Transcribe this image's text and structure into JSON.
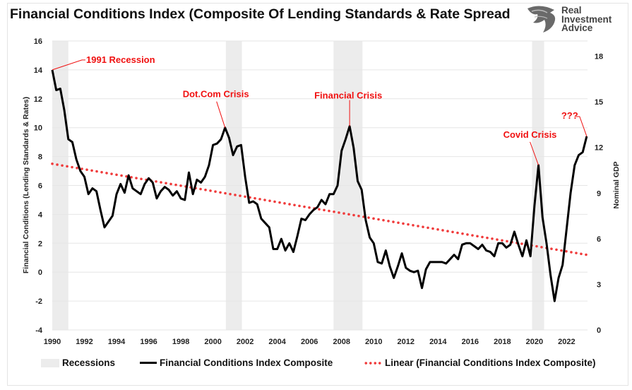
{
  "title": "Financial Conditions Index (Composite Of Lending Standards & Rate Spread",
  "logo": {
    "line1": "Real",
    "line2": "Investment",
    "line3": "Advice"
  },
  "chart_data": {
    "type": "line",
    "title": "Financial Conditions Index (Composite Of Lending Standards & Rate Spread",
    "ylabel": "Financial Conditions (Lending Standards & Rates)",
    "y2label": "Nominal GDP",
    "xlim": [
      1990,
      2023.3
    ],
    "ylim": [
      -4,
      16
    ],
    "y2lim": [
      0,
      19
    ],
    "xticks": [
      "1990",
      "1992",
      "1994",
      "1996",
      "1998",
      "2000",
      "2002",
      "2004",
      "2006",
      "2008",
      "2010",
      "2012",
      "2014",
      "2016",
      "2018",
      "2020",
      "2022"
    ],
    "yticks": [
      "-4",
      "-2",
      "0",
      "2",
      "4",
      "6",
      "8",
      "10",
      "12",
      "14",
      "16"
    ],
    "y2ticks": [
      "0",
      "3",
      "6",
      "9",
      "12",
      "15",
      "18"
    ],
    "grid": "horizontal",
    "legend_position": "bottom",
    "colors": {
      "index": "#000000",
      "trend": "#f03a3a",
      "recession": "#ececec",
      "annotation": "#f01010"
    },
    "recessions": [
      [
        1990.0,
        1991.0
      ],
      [
        2000.8,
        2001.8
      ],
      [
        2007.5,
        2009.3
      ],
      [
        2019.85,
        2020.6
      ]
    ],
    "series": [
      {
        "name": "Financial Conditions Index Composite",
        "x": [
          1990.0,
          1990.25,
          1990.5,
          1990.75,
          1991.0,
          1991.25,
          1991.5,
          1991.75,
          1992.0,
          1992.25,
          1992.5,
          1992.75,
          1993.0,
          1993.25,
          1993.5,
          1993.75,
          1994.0,
          1994.25,
          1994.5,
          1994.75,
          1995.0,
          1995.25,
          1995.5,
          1995.75,
          1996.0,
          1996.25,
          1996.5,
          1996.75,
          1997.0,
          1997.25,
          1997.5,
          1997.75,
          1998.0,
          1998.25,
          1998.5,
          1998.75,
          1999.0,
          1999.25,
          1999.5,
          1999.75,
          2000.0,
          2000.25,
          2000.5,
          2000.75,
          2001.0,
          2001.25,
          2001.5,
          2001.75,
          2002.0,
          2002.25,
          2002.5,
          2002.75,
          2003.0,
          2003.25,
          2003.5,
          2003.75,
          2004.0,
          2004.25,
          2004.5,
          2004.75,
          2005.0,
          2005.25,
          2005.5,
          2005.75,
          2006.0,
          2006.25,
          2006.5,
          2006.75,
          2007.0,
          2007.25,
          2007.5,
          2007.75,
          2008.0,
          2008.25,
          2008.5,
          2008.75,
          2009.0,
          2009.25,
          2009.5,
          2009.75,
          2010.0,
          2010.25,
          2010.5,
          2010.75,
          2011.0,
          2011.25,
          2011.5,
          2011.75,
          2012.0,
          2012.25,
          2012.5,
          2012.75,
          2013.0,
          2013.25,
          2013.5,
          2013.75,
          2014.0,
          2014.25,
          2014.5,
          2014.75,
          2015.0,
          2015.25,
          2015.5,
          2015.75,
          2016.0,
          2016.25,
          2016.5,
          2016.75,
          2017.0,
          2017.25,
          2017.5,
          2017.75,
          2018.0,
          2018.25,
          2018.5,
          2018.75,
          2019.0,
          2019.25,
          2019.5,
          2019.75,
          2020.0,
          2020.25,
          2020.5,
          2020.75,
          2021.0,
          2021.25,
          2021.5,
          2021.75,
          2022.0,
          2022.25,
          2022.5,
          2022.75,
          2023.0,
          2023.25
        ],
        "values": [
          14.0,
          12.6,
          12.7,
          11.2,
          9.2,
          9.0,
          7.8,
          7.0,
          6.6,
          5.4,
          5.8,
          5.6,
          4.3,
          3.1,
          3.5,
          3.9,
          5.4,
          6.1,
          5.5,
          6.7,
          5.8,
          5.6,
          5.4,
          6.1,
          6.5,
          6.2,
          5.1,
          5.6,
          5.9,
          5.7,
          5.3,
          5.6,
          5.1,
          5.0,
          6.9,
          5.4,
          6.4,
          6.2,
          6.6,
          7.4,
          8.8,
          8.9,
          9.2,
          10.0,
          9.3,
          8.1,
          8.7,
          8.8,
          6.6,
          4.8,
          4.9,
          4.7,
          3.7,
          3.4,
          3.1,
          1.6,
          1.6,
          2.3,
          1.5,
          2.0,
          1.4,
          2.5,
          3.7,
          3.6,
          4.0,
          4.3,
          4.5,
          5.0,
          4.7,
          5.4,
          5.4,
          6.0,
          8.4,
          9.2,
          10.1,
          8.6,
          6.3,
          5.7,
          3.6,
          2.4,
          2.0,
          0.7,
          0.6,
          1.5,
          0.4,
          -0.4,
          0.4,
          1.3,
          0.3,
          0.1,
          0.0,
          0.1,
          -1.1,
          0.2,
          0.7,
          0.7,
          0.7,
          0.7,
          0.6,
          0.9,
          1.2,
          0.9,
          1.9,
          2.0,
          2.0,
          1.8,
          1.6,
          1.9,
          1.5,
          1.4,
          1.1,
          2.0,
          2.0,
          1.7,
          1.9,
          2.8,
          1.9,
          1.1,
          2.2,
          1.1,
          4.6,
          7.4,
          3.8,
          2.0,
          -0.2,
          -2.0,
          -0.4,
          0.5,
          3.0,
          5.5,
          7.4,
          8.1,
          8.3,
          9.4
        ]
      },
      {
        "name": "Linear (Financial Conditions Index Composite)",
        "x": [
          1990.0,
          2023.25
        ],
        "values": [
          7.5,
          1.2
        ]
      }
    ],
    "legend": [
      "Recessions",
      "Financial Conditions Index Composite",
      "Linear (Financial Conditions Index Composite)"
    ],
    "annotations": [
      {
        "text": "1991 Recession",
        "x": 1990.0,
        "y": 14.0
      },
      {
        "text": "Dot.Com Crisis",
        "x": 2000.75,
        "y": 10.0
      },
      {
        "text": "Financial Crisis",
        "x": 2008.5,
        "y": 10.1
      },
      {
        "text": "Covid Crisis",
        "x": 2020.25,
        "y": 7.4
      },
      {
        "text": "???",
        "x": 2023.25,
        "y": 9.4
      }
    ]
  }
}
